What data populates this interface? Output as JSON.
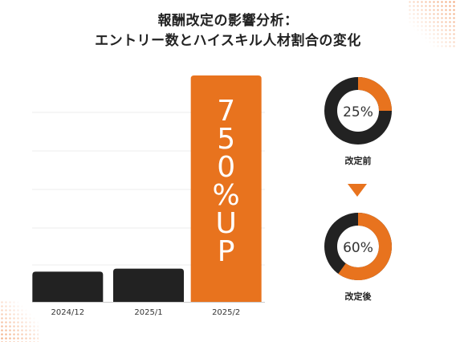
{
  "title_line1": "報酬改定の影響分析：",
  "title_line2": "エントリー数とハイスキル人材割合の変化",
  "colors": {
    "accent": "#e8731e",
    "dark": "#222222",
    "grid": "#eeeeee"
  },
  "chart_data": [
    {
      "type": "bar",
      "categories": [
        "2024/12",
        "2025/1",
        "2025/2"
      ],
      "values": [
        1,
        1.1,
        7.5
      ],
      "bar_colors": [
        "#222222",
        "#222222",
        "#e8731e"
      ],
      "annotation": "750%UP",
      "title": "",
      "xlabel": "",
      "ylabel": ""
    },
    {
      "type": "pie",
      "value": 25,
      "label": "25%",
      "caption": "改定前"
    },
    {
      "type": "pie",
      "value": 60,
      "label": "60%",
      "caption": "改定後"
    }
  ]
}
